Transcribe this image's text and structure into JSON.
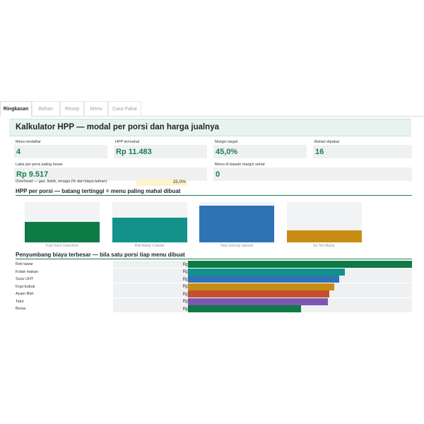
{
  "tabs": [
    {
      "label": "Ringkasan",
      "active": true
    },
    {
      "label": "Bahan",
      "active": false
    },
    {
      "label": "Resep",
      "active": false
    },
    {
      "label": "Menu",
      "active": false
    },
    {
      "label": "Cara Pakai",
      "active": false
    }
  ],
  "header": {
    "title": "Kalkulator HPP — modal per porsi dan harga jualnya"
  },
  "metrics": {
    "menu_terdaftar": {
      "label": "Menu terdaftar",
      "value": "4"
    },
    "hpp_termahal": {
      "label": "HPP termahal",
      "value": "Rp 11.483"
    },
    "margin_target": {
      "label": "Margin target",
      "value": "45,0%"
    },
    "bahan_dipakai": {
      "label": "Bahan dipakai",
      "value": "16"
    },
    "laba_terbesar": {
      "label": "Laba per porsi paling besar",
      "value": "Rp 9.517"
    },
    "menu_bawah_margin": {
      "label": "Menu di bawah margin sehat",
      "value": "0"
    }
  },
  "overhead": {
    "label": "Overhead — gas, listrik, tenaga (% dari biaya bahan)",
    "value": "15,0%"
  },
  "hpp_section": {
    "title": "HPP per porsi — batang tertinggi = menu paling mahal dibuat"
  },
  "chart_data": {
    "type": "bar",
    "categories": [
      "Kopi Susu Gula Aren",
      "Roti Bakar Cokelat",
      "Nasi Goreng Spesial",
      "Es Teh Manis"
    ],
    "series": [
      {
        "values": [
          0.55,
          0.67,
          1.0,
          0.32
        ]
      }
    ],
    "colors": [
      "#0e7a45",
      "#12928a",
      "#2e74b5",
      "#c98c12"
    ],
    "title": "",
    "ylim": [
      0,
      1.1
    ]
  },
  "contrib_section": {
    "title": "Penyumbang biaya terbesar — bila satu porsi tiap menu dibuat"
  },
  "contributors": [
    {
      "name": "Roti tawar",
      "value": "Rp 4.000",
      "amount": 4000,
      "color": "#0e7a45"
    },
    {
      "name": "Kotak makan",
      "value": "Rp 2.800",
      "amount": 2800,
      "color": "#12928a"
    },
    {
      "name": "Susu UHT",
      "value": "Rp 2.700",
      "amount": 2700,
      "color": "#2e74b5"
    },
    {
      "name": "Kopi bubuk",
      "value": "Rp 2.610",
      "amount": 2610,
      "color": "#c98c12"
    },
    {
      "name": "Ayam fillet",
      "value": "Rp 2.520",
      "amount": 2520,
      "color": "#c0502e"
    },
    {
      "name": "Telur",
      "value": "Rp 2.500",
      "amount": 2500,
      "color": "#7b58b0"
    },
    {
      "name": "Beras",
      "value": "Rp 2.025",
      "amount": 2025,
      "color": "#0e7a45"
    }
  ]
}
